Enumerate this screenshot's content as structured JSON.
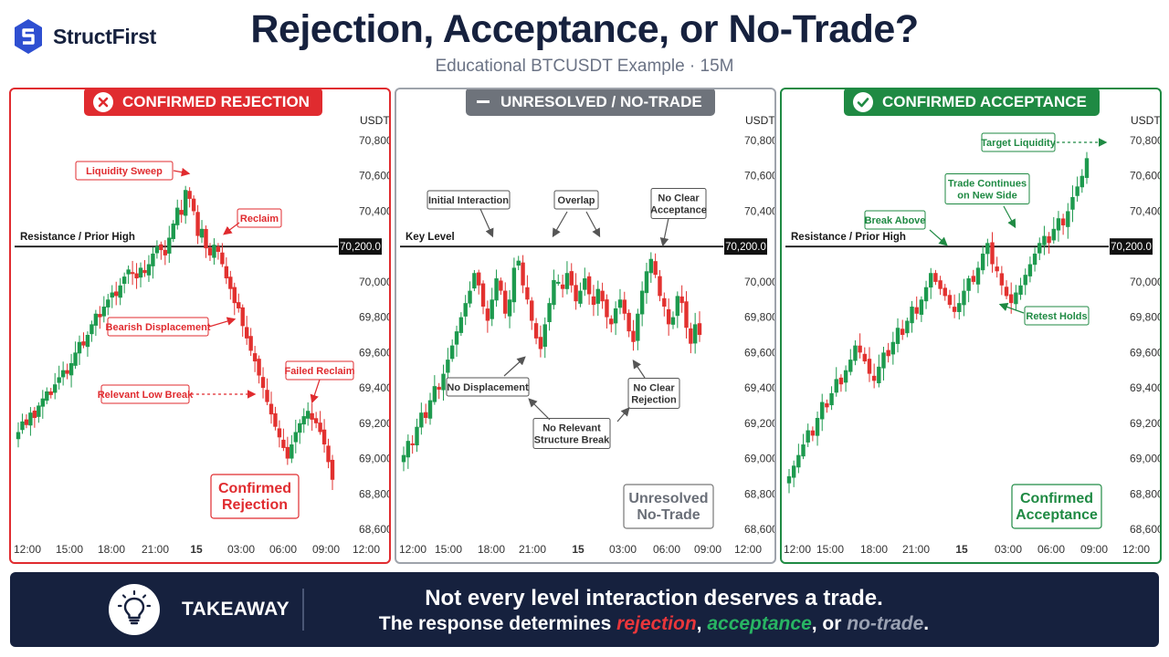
{
  "brand": {
    "name": "StructFirst"
  },
  "title": "Rejection, Acceptance, or No-Trade?",
  "subtitle": "Educational BTCUSDT Example · 15M",
  "colors": {
    "red": "#e02b2f",
    "green": "#1f8a43",
    "gray": "#6e737b",
    "navy": "#16213e",
    "bull": "#1d9a4e",
    "bear": "#e2312f"
  },
  "takeaway": {
    "label": "TAKEAWAY",
    "line1": "Not every level interaction deserves a trade.",
    "line2_pre": "The response determines ",
    "w1": "rejection",
    "sep1": ", ",
    "w2": "acceptance",
    "sep2": ", or ",
    "w3": "no-trade",
    "end": "."
  },
  "chart_data": [
    {
      "type": "candlestick",
      "badge": "CONFIRMED REJECTION",
      "theme": "red",
      "y_unit": "USDT",
      "y_ticks": [
        "70,800.0",
        "70,600.0",
        "70,400.0",
        "70,200.0",
        "70,000.0",
        "69,800.0",
        "69,600.0",
        "69,400.0",
        "69,200.0",
        "69,000.0",
        "68,800.0",
        "68,600.0"
      ],
      "x_ticks": [
        "12:00",
        "15:00",
        "18:00",
        "21:00",
        "15",
        "03:00",
        "06:00",
        "09:00",
        "12:00"
      ],
      "level": {
        "label": "Resistance / Prior High",
        "value": "70,200.0"
      },
      "closes": [
        69150,
        69210,
        69190,
        69260,
        69230,
        69300,
        69340,
        69380,
        69360,
        69420,
        69460,
        69500,
        69480,
        69540,
        69600,
        69660,
        69640,
        69700,
        69760,
        69820,
        69800,
        69860,
        69900,
        69940,
        69920,
        69980,
        70030,
        70070,
        70050,
        70020,
        70080,
        70050,
        70100,
        70160,
        70200,
        70180,
        70150,
        70250,
        70330,
        70420,
        70380,
        70520,
        70470,
        70400,
        70260,
        70300,
        70190,
        70150,
        70210,
        70170,
        70100,
        70020,
        69960,
        69880,
        69850,
        69750,
        69680,
        69610,
        69550,
        69470,
        69400,
        69320,
        69250,
        69180,
        69120,
        69060,
        69000,
        69080,
        69150,
        69200,
        69240,
        69270,
        69220,
        69200,
        69150,
        69080,
        68980,
        68880
      ],
      "annotations": [
        "Liquidity Sweep",
        "Reclaim",
        "Bearish Displacement",
        "Relevant Low Break",
        "Failed Reclaim"
      ],
      "verdict": [
        "Confirmed",
        "Rejection"
      ]
    },
    {
      "type": "candlestick",
      "badge": "UNRESOLVED / NO-TRADE",
      "theme": "gray",
      "y_unit": "USDT",
      "y_ticks": [
        "70,800.0",
        "70,600.0",
        "70,400.0",
        "70,200.0",
        "70,000.0",
        "69,800.0",
        "69,600.0",
        "69,400.0",
        "69,200.0",
        "69,000.0",
        "68,800.0",
        "68,600.0"
      ],
      "x_ticks": [
        "12:00",
        "15:00",
        "18:00",
        "21:00",
        "15",
        "03:00",
        "06:00",
        "09:00",
        "12:00"
      ],
      "level": {
        "label": "Key Level",
        "value": "70,200.0"
      },
      "closes": [
        69020,
        69100,
        69080,
        69180,
        69260,
        69230,
        69330,
        69410,
        69390,
        69480,
        69560,
        69640,
        69720,
        69800,
        69880,
        69950,
        70050,
        69980,
        69860,
        69780,
        69900,
        70020,
        69950,
        69820,
        69900,
        70080,
        70120,
        69980,
        69900,
        69780,
        69680,
        69620,
        69760,
        69880,
        70010,
        70000,
        69960,
        70050,
        69980,
        69890,
        69950,
        70020,
        69930,
        69870,
        69960,
        69890,
        69800,
        69760,
        69850,
        69900,
        69820,
        69720,
        69660,
        69820,
        69950,
        70060,
        70130,
        70040,
        69920,
        69860,
        69760,
        69800,
        69920,
        69880,
        69740,
        69650,
        69760,
        69700
      ],
      "annotations": [
        "Initial Interaction",
        "Overlap",
        "No Clear Acceptance",
        "No Displacement",
        "No Clear Rejection",
        "No Relevant Structure Break"
      ],
      "verdict": [
        "Unresolved",
        "No-Trade"
      ]
    },
    {
      "type": "candlestick",
      "badge": "CONFIRMED ACCEPTANCE",
      "theme": "green",
      "y_unit": "USDT",
      "y_ticks": [
        "70,800.0",
        "70,600.0",
        "70,400.0",
        "70,200.0",
        "70,000.0",
        "69,800.0",
        "69,600.0",
        "69,400.0",
        "69,200.0",
        "69,000.0",
        "68,800.0",
        "68,600.0"
      ],
      "x_ticks": [
        "12:00",
        "15:00",
        "18:00",
        "21:00",
        "15",
        "03:00",
        "06:00",
        "09:00",
        "12:00"
      ],
      "level": {
        "label": "Resistance / Prior High",
        "value": "70,200.0"
      },
      "closes": [
        68900,
        68960,
        69020,
        69080,
        69160,
        69130,
        69230,
        69320,
        69290,
        69370,
        69450,
        69420,
        69500,
        69560,
        69640,
        69600,
        69550,
        69480,
        69440,
        69520,
        69600,
        69580,
        69660,
        69740,
        69700,
        69780,
        69860,
        69820,
        69900,
        69970,
        70050,
        70000,
        69960,
        69920,
        69870,
        69830,
        69880,
        69950,
        70020,
        70000,
        70080,
        70160,
        70220,
        70100,
        70060,
        69980,
        69920,
        69880,
        69940,
        69980,
        70040,
        70100,
        70160,
        70220,
        70260,
        70220,
        70300,
        70360,
        70320,
        70400,
        70480,
        70540,
        70600,
        70700
      ],
      "annotations": [
        "Target Liquidity",
        "Trade Continues on New Side",
        "Break Above",
        "Retest Holds"
      ],
      "verdict": [
        "Confirmed",
        "Acceptance"
      ]
    }
  ]
}
